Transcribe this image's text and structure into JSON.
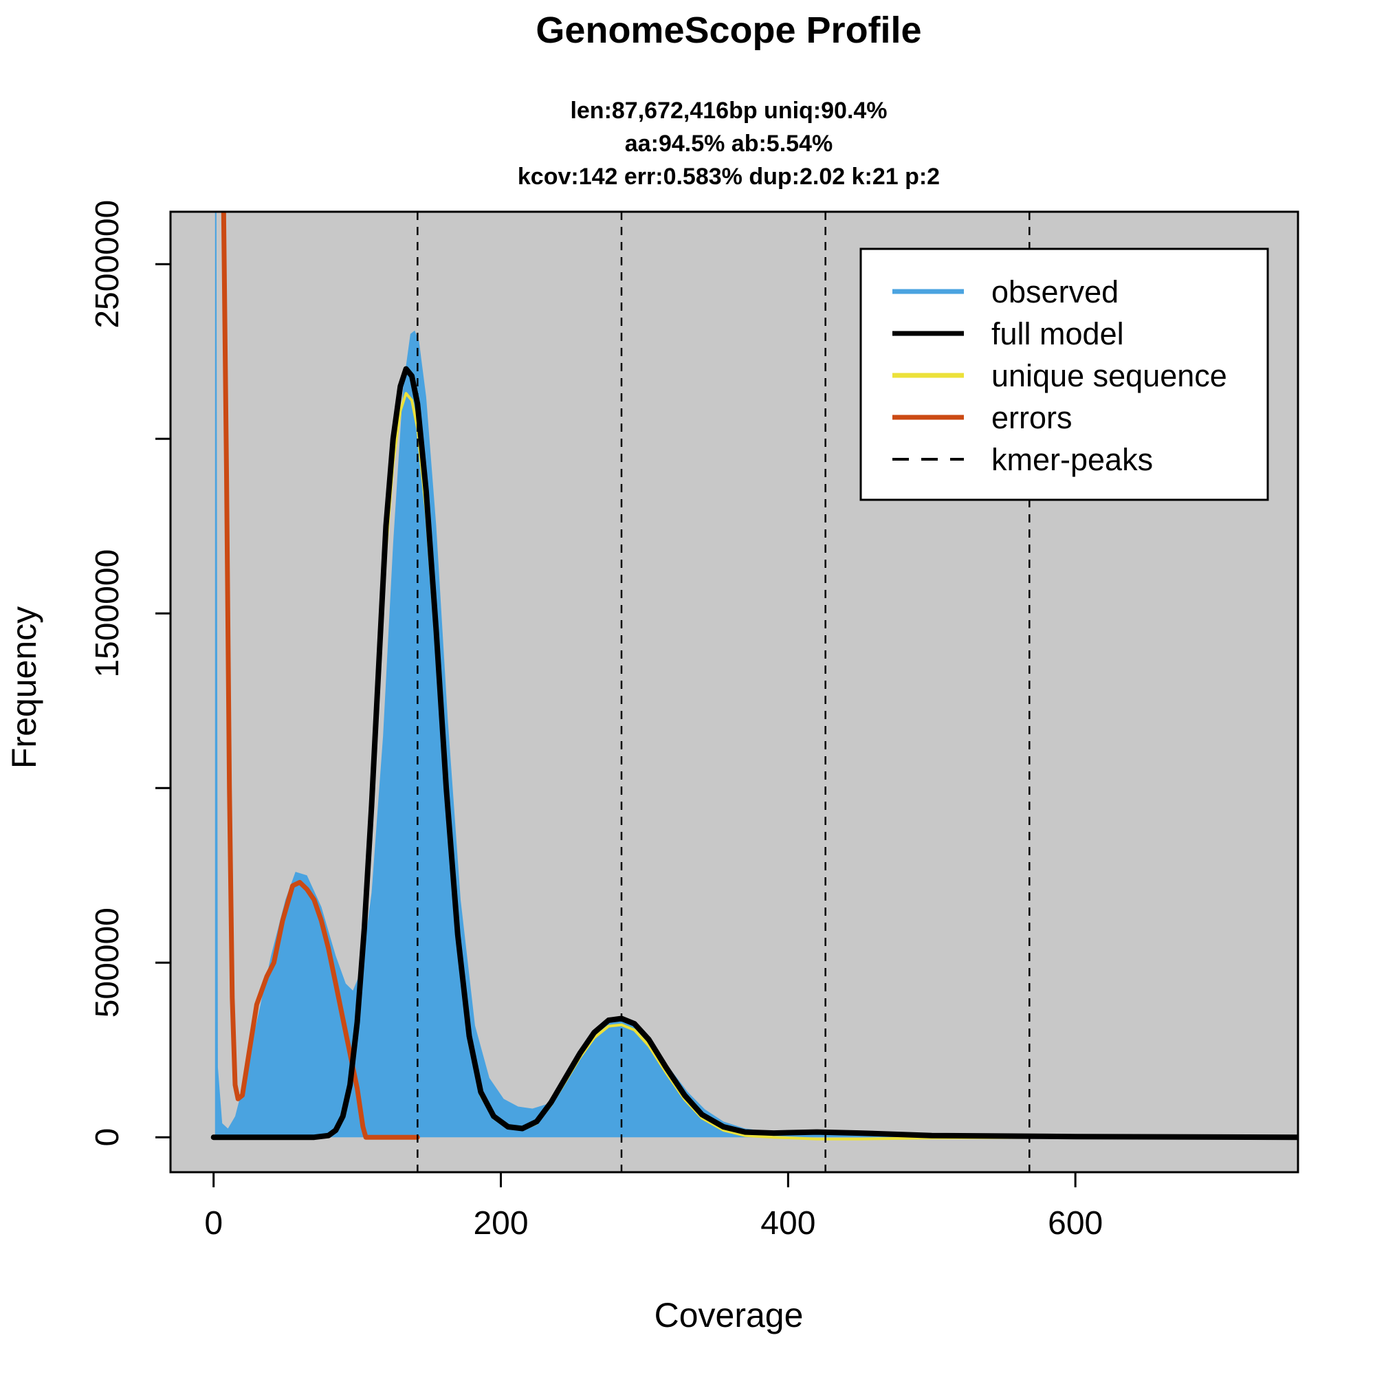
{
  "chart_data": {
    "type": "line",
    "title": "GenomeScope Profile",
    "subtitle_lines": [
      "len:87,672,416bp uniq:90.4%",
      "aa:94.5% ab:5.54%",
      "kcov:142 err:0.583%  dup:2.02  k:21 p:2"
    ],
    "xlabel": "Coverage",
    "ylabel": "Frequency",
    "xlim": [
      -30,
      755
    ],
    "ylim": [
      -100000,
      2650000
    ],
    "x_ticks": [
      0,
      200,
      400,
      600
    ],
    "y_ticks": [
      0,
      500000,
      1000000,
      1500000,
      2000000,
      2500000
    ],
    "y_tick_labels": [
      "0",
      "500000",
      "",
      "1500000",
      "",
      "2500000"
    ],
    "background_color": "#c8c8c8",
    "legend_position": "top-right",
    "kmer_peaks": [
      142,
      284,
      426,
      568
    ],
    "series": [
      {
        "name": "observed",
        "color": "#4aa3e0",
        "style": "filled",
        "points": [
          [
            1,
            2700000
          ],
          [
            2,
            2700000
          ],
          [
            3,
            200000
          ],
          [
            6,
            40000
          ],
          [
            10,
            25000
          ],
          [
            15,
            60000
          ],
          [
            20,
            140000
          ],
          [
            30,
            330000
          ],
          [
            40,
            520000
          ],
          [
            50,
            680000
          ],
          [
            57,
            760000
          ],
          [
            65,
            750000
          ],
          [
            75,
            660000
          ],
          [
            85,
            520000
          ],
          [
            92,
            440000
          ],
          [
            97,
            420000
          ],
          [
            103,
            480000
          ],
          [
            110,
            700000
          ],
          [
            118,
            1150000
          ],
          [
            125,
            1700000
          ],
          [
            132,
            2150000
          ],
          [
            137,
            2300000
          ],
          [
            140,
            2310000
          ],
          [
            143,
            2280000
          ],
          [
            148,
            2120000
          ],
          [
            155,
            1750000
          ],
          [
            163,
            1200000
          ],
          [
            172,
            680000
          ],
          [
            182,
            320000
          ],
          [
            192,
            170000
          ],
          [
            202,
            110000
          ],
          [
            212,
            88000
          ],
          [
            222,
            82000
          ],
          [
            232,
            95000
          ],
          [
            245,
            160000
          ],
          [
            258,
            250000
          ],
          [
            270,
            315000
          ],
          [
            282,
            340000
          ],
          [
            294,
            320000
          ],
          [
            306,
            265000
          ],
          [
            318,
            195000
          ],
          [
            330,
            130000
          ],
          [
            342,
            80000
          ],
          [
            355,
            45000
          ],
          [
            370,
            25000
          ],
          [
            390,
            15000
          ],
          [
            420,
            9000
          ],
          [
            460,
            5000
          ],
          [
            520,
            3000
          ],
          [
            600,
            1500
          ],
          [
            700,
            600
          ],
          [
            755,
            300
          ]
        ]
      },
      {
        "name": "full model",
        "color": "#000000",
        "style": "line",
        "points": [
          [
            0,
            0
          ],
          [
            70,
            0
          ],
          [
            80,
            5000
          ],
          [
            85,
            20000
          ],
          [
            90,
            60000
          ],
          [
            95,
            150000
          ],
          [
            100,
            330000
          ],
          [
            105,
            600000
          ],
          [
            110,
            950000
          ],
          [
            115,
            1350000
          ],
          [
            120,
            1750000
          ],
          [
            125,
            2000000
          ],
          [
            130,
            2150000
          ],
          [
            134,
            2200000
          ],
          [
            138,
            2180000
          ],
          [
            142,
            2100000
          ],
          [
            148,
            1850000
          ],
          [
            155,
            1450000
          ],
          [
            162,
            1000000
          ],
          [
            170,
            580000
          ],
          [
            178,
            290000
          ],
          [
            186,
            130000
          ],
          [
            195,
            60000
          ],
          [
            205,
            30000
          ],
          [
            215,
            25000
          ],
          [
            225,
            45000
          ],
          [
            235,
            100000
          ],
          [
            245,
            170000
          ],
          [
            255,
            240000
          ],
          [
            265,
            300000
          ],
          [
            275,
            335000
          ],
          [
            284,
            340000
          ],
          [
            293,
            325000
          ],
          [
            303,
            280000
          ],
          [
            315,
            200000
          ],
          [
            328,
            120000
          ],
          [
            340,
            65000
          ],
          [
            355,
            30000
          ],
          [
            370,
            15000
          ],
          [
            390,
            12000
          ],
          [
            420,
            15000
          ],
          [
            450,
            12000
          ],
          [
            500,
            5000
          ],
          [
            600,
            2000
          ],
          [
            755,
            0
          ]
        ]
      },
      {
        "name": "unique sequence",
        "color": "#ece13a",
        "style": "line",
        "points": [
          [
            105,
            560000
          ],
          [
            110,
            900000
          ],
          [
            115,
            1300000
          ],
          [
            120,
            1680000
          ],
          [
            125,
            1930000
          ],
          [
            130,
            2080000
          ],
          [
            134,
            2130000
          ],
          [
            138,
            2110000
          ],
          [
            142,
            2030000
          ],
          [
            148,
            1790000
          ],
          [
            155,
            1400000
          ],
          [
            162,
            960000
          ],
          [
            170,
            550000
          ],
          [
            178,
            270000
          ],
          [
            186,
            120000
          ],
          [
            195,
            55000
          ],
          [
            205,
            27000
          ],
          [
            215,
            22000
          ],
          [
            225,
            40000
          ],
          [
            235,
            93000
          ],
          [
            245,
            160000
          ],
          [
            255,
            228000
          ],
          [
            265,
            285000
          ],
          [
            275,
            318000
          ],
          [
            284,
            322000
          ],
          [
            293,
            307000
          ],
          [
            303,
            262000
          ],
          [
            315,
            185000
          ],
          [
            328,
            108000
          ],
          [
            340,
            55000
          ],
          [
            355,
            20000
          ],
          [
            370,
            5000
          ],
          [
            390,
            0
          ],
          [
            420,
            -5000
          ],
          [
            450,
            -5000
          ],
          [
            500,
            -2000
          ],
          [
            600,
            0
          ],
          [
            755,
            0
          ]
        ]
      },
      {
        "name": "errors",
        "color": "#cb4a13",
        "style": "line",
        "points": [
          [
            7,
            2700000
          ],
          [
            9,
            1900000
          ],
          [
            11,
            1000000
          ],
          [
            13,
            400000
          ],
          [
            15,
            150000
          ],
          [
            17,
            110000
          ],
          [
            20,
            120000
          ],
          [
            25,
            250000
          ],
          [
            30,
            380000
          ],
          [
            37,
            460000
          ],
          [
            42,
            500000
          ],
          [
            48,
            620000
          ],
          [
            55,
            720000
          ],
          [
            60,
            730000
          ],
          [
            65,
            710000
          ],
          [
            70,
            680000
          ],
          [
            75,
            620000
          ],
          [
            80,
            540000
          ],
          [
            85,
            440000
          ],
          [
            90,
            340000
          ],
          [
            95,
            240000
          ],
          [
            100,
            140000
          ],
          [
            104,
            30000
          ],
          [
            106,
            0
          ],
          [
            142,
            0
          ]
        ]
      }
    ]
  }
}
